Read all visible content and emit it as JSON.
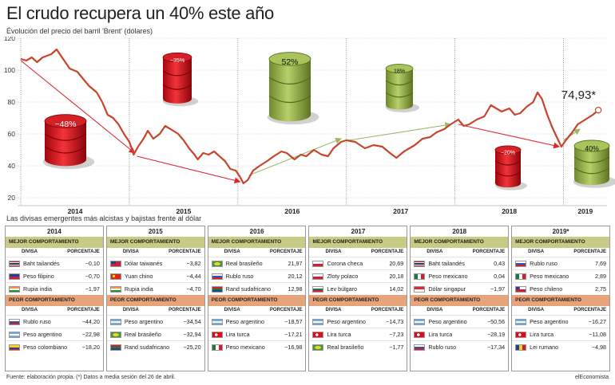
{
  "title": "El crudo recupera un 40% este año",
  "subtitle": "Évolución del precio del barril 'Brent' (dólares)",
  "chart_data": {
    "type": "line",
    "ylim": [
      20,
      120
    ],
    "yticks": [
      "120",
      "100",
      "80",
      "60",
      "40",
      "20"
    ],
    "x_labels": [
      "2014",
      "2015",
      "2016",
      "2017",
      "2018",
      "2019"
    ],
    "series": [
      {
        "points": [
          [
            2014.0,
            107
          ],
          [
            2014.05,
            106
          ],
          [
            2014.1,
            108
          ],
          [
            2014.15,
            105
          ],
          [
            2014.2,
            108
          ],
          [
            2014.28,
            110
          ],
          [
            2014.33,
            113
          ],
          [
            2014.38,
            108
          ],
          [
            2014.45,
            101
          ],
          [
            2014.52,
            99
          ],
          [
            2014.58,
            94
          ],
          [
            2014.63,
            90
          ],
          [
            2014.7,
            86
          ],
          [
            2014.75,
            80
          ],
          [
            2014.8,
            72
          ],
          [
            2014.85,
            70
          ],
          [
            2014.9,
            66
          ],
          [
            2014.95,
            60
          ],
          [
            2015.0,
            55
          ],
          [
            2015.04,
            47
          ],
          [
            2015.08,
            52
          ],
          [
            2015.13,
            57
          ],
          [
            2015.17,
            62
          ],
          [
            2015.22,
            57
          ],
          [
            2015.28,
            60
          ],
          [
            2015.33,
            65
          ],
          [
            2015.38,
            63
          ],
          [
            2015.45,
            60
          ],
          [
            2015.5,
            56
          ],
          [
            2015.55,
            51
          ],
          [
            2015.6,
            47
          ],
          [
            2015.63,
            44
          ],
          [
            2015.68,
            48
          ],
          [
            2015.73,
            47
          ],
          [
            2015.78,
            49
          ],
          [
            2015.83,
            46
          ],
          [
            2015.88,
            43
          ],
          [
            2015.93,
            38
          ],
          [
            2015.98,
            37
          ],
          [
            2016.02,
            33
          ],
          [
            2016.05,
            29
          ],
          [
            2016.09,
            31
          ],
          [
            2016.14,
            37
          ],
          [
            2016.2,
            40
          ],
          [
            2016.27,
            43
          ],
          [
            2016.33,
            46
          ],
          [
            2016.4,
            49
          ],
          [
            2016.45,
            48
          ],
          [
            2016.52,
            44
          ],
          [
            2016.58,
            47
          ],
          [
            2016.63,
            46
          ],
          [
            2016.7,
            50
          ],
          [
            2016.77,
            47
          ],
          [
            2016.83,
            46
          ],
          [
            2016.88,
            51
          ],
          [
            2016.95,
            55
          ],
          [
            2017.0,
            56
          ],
          [
            2017.08,
            55
          ],
          [
            2017.17,
            51
          ],
          [
            2017.25,
            53
          ],
          [
            2017.33,
            52
          ],
          [
            2017.4,
            48
          ],
          [
            2017.46,
            45
          ],
          [
            2017.53,
            49
          ],
          [
            2017.58,
            51
          ],
          [
            2017.63,
            53
          ],
          [
            2017.7,
            57
          ],
          [
            2017.77,
            58
          ],
          [
            2017.83,
            61
          ],
          [
            2017.9,
            63
          ],
          [
            2017.96,
            66
          ],
          [
            2018.03,
            69
          ],
          [
            2018.08,
            65
          ],
          [
            2018.13,
            66
          ],
          [
            2018.2,
            69
          ],
          [
            2018.27,
            71
          ],
          [
            2018.33,
            78
          ],
          [
            2018.38,
            76
          ],
          [
            2018.43,
            74
          ],
          [
            2018.5,
            76
          ],
          [
            2018.55,
            72
          ],
          [
            2018.6,
            73
          ],
          [
            2018.66,
            77
          ],
          [
            2018.72,
            80
          ],
          [
            2018.76,
            86
          ],
          [
            2018.8,
            82
          ],
          [
            2018.85,
            72
          ],
          [
            2018.89,
            65
          ],
          [
            2018.93,
            59
          ],
          [
            2018.98,
            52
          ],
          [
            2019.02,
            56
          ],
          [
            2019.08,
            61
          ],
          [
            2019.13,
            66
          ],
          [
            2019.2,
            69
          ],
          [
            2019.27,
            72
          ],
          [
            2019.32,
            74.93
          ]
        ]
      }
    ],
    "last_value_label": "74,93*",
    "barrels": [
      "−48%",
      "−35%",
      "52%",
      "18%",
      "−20%",
      "40%"
    ]
  },
  "divisas_title": "Las divisas emergentes más alcistas y bajistas frente al dólar",
  "labels": {
    "best": "MEJOR COMPORTAMIENTO",
    "worst": "PEOR COMPORTAMIENTO",
    "col_divisa": "DIVISA",
    "col_pct": "PORCENTAJE"
  },
  "tables": [
    {
      "year": "2014",
      "best": [
        {
          "name": "Baht tailandés",
          "pct": "−0,10",
          "flag": "th"
        },
        {
          "name": "Peso filipino",
          "pct": "−0,70",
          "flag": "ph"
        },
        {
          "name": "Rupia india",
          "pct": "−1,97",
          "flag": "in"
        }
      ],
      "worst": [
        {
          "name": "Rublo ruso",
          "pct": "−44,20",
          "flag": "ru"
        },
        {
          "name": "Peso argentino",
          "pct": "−22,98",
          "flag": "ar"
        },
        {
          "name": "Peso colombiano",
          "pct": "−18,20",
          "flag": "co"
        }
      ]
    },
    {
      "year": "2015",
      "best": [
        {
          "name": "Dólar taiwanés",
          "pct": "−3,82",
          "flag": "tw"
        },
        {
          "name": "Yuan chino",
          "pct": "−4,44",
          "flag": "cn"
        },
        {
          "name": "Rupia india",
          "pct": "−4,70",
          "flag": "in"
        }
      ],
      "worst": [
        {
          "name": "Peso argentino",
          "pct": "−34,54",
          "flag": "ar"
        },
        {
          "name": "Real brasileño",
          "pct": "−32,94",
          "flag": "br"
        },
        {
          "name": "Rand sudafricano",
          "pct": "−25,20",
          "flag": "za"
        }
      ]
    },
    {
      "year": "2016",
      "best": [
        {
          "name": "Real brasileño",
          "pct": "21,97",
          "flag": "br"
        },
        {
          "name": "Rublo ruso",
          "pct": "20,12",
          "flag": "ru"
        },
        {
          "name": "Rand sudafricano",
          "pct": "12,98",
          "flag": "za"
        }
      ],
      "worst": [
        {
          "name": "Peso argentino",
          "pct": "−18,57",
          "flag": "ar"
        },
        {
          "name": "Lira turca",
          "pct": "−17,21",
          "flag": "tr"
        },
        {
          "name": "Peso mexicano",
          "pct": "−16,98",
          "flag": "mx"
        }
      ]
    },
    {
      "year": "2017",
      "best": [
        {
          "name": "Corona checa",
          "pct": "20,69",
          "flag": "cz"
        },
        {
          "name": "Zloty polaco",
          "pct": "20,18",
          "flag": "pl"
        },
        {
          "name": "Lev búlgaro",
          "pct": "14,02",
          "flag": "bg"
        }
      ],
      "worst": [
        {
          "name": "Peso argentino",
          "pct": "−14,73",
          "flag": "ar"
        },
        {
          "name": "Lira turca",
          "pct": "−7,23",
          "flag": "tr"
        },
        {
          "name": "Real brasileño",
          "pct": "−1,77",
          "flag": "br"
        }
      ]
    },
    {
      "year": "2018",
      "best": [
        {
          "name": "Baht tailandés",
          "pct": "0,43",
          "flag": "th"
        },
        {
          "name": "Peso mexicano",
          "pct": "0,04",
          "flag": "mx"
        },
        {
          "name": "Dólar singapur",
          "pct": "−1,97",
          "flag": "sg"
        }
      ],
      "worst": [
        {
          "name": "Peso argentino",
          "pct": "−50,56",
          "flag": "ar"
        },
        {
          "name": "Lira turca",
          "pct": "−28,19",
          "flag": "tr"
        },
        {
          "name": "Rublo ruso",
          "pct": "−17,34",
          "flag": "ru"
        }
      ]
    },
    {
      "year": "2019*",
      "best": [
        {
          "name": "Rublo ruso",
          "pct": "7,69",
          "flag": "ru"
        },
        {
          "name": "Peso mexicano",
          "pct": "2,89",
          "flag": "mx"
        },
        {
          "name": "Peso chileno",
          "pct": "2,75",
          "flag": "cl"
        }
      ],
      "worst": [
        {
          "name": "Peso argentino",
          "pct": "−16,27",
          "flag": "ar"
        },
        {
          "name": "Lira turca",
          "pct": "−11,08",
          "flag": "tr"
        },
        {
          "name": "Lei rumano",
          "pct": "−4,98",
          "flag": "ro"
        }
      ]
    }
  ],
  "footer_source": "Fuente: elaboración propia. (*) Datos a media sesión del 26 de abril.",
  "footer_brand": "elEconomista",
  "colors": {
    "line": "#c8452c",
    "red_arrow": "#e0282f",
    "green_arrow": "#9bb86a",
    "best_band": "#c9ca84",
    "worst_band": "#e7a47b"
  }
}
